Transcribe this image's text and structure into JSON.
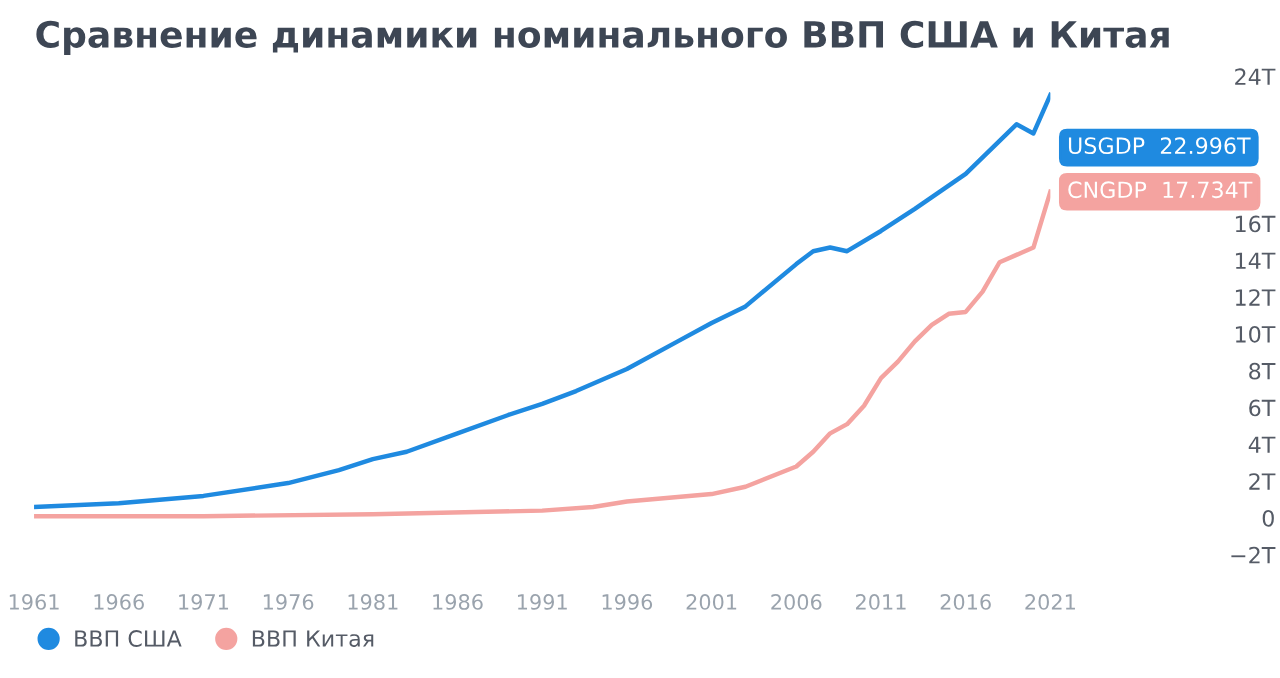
{
  "chart_data": {
    "type": "line",
    "title": "Сравнение динамики номинального ВВП США и Китая",
    "series": [
      {
        "name": "ВВП США",
        "color": "#1f8ae0",
        "x": [
          1961,
          1966,
          1971,
          1976,
          1979,
          1981,
          1983,
          1986,
          1989,
          1991,
          1993,
          1996,
          1999,
          2001,
          2003,
          2006,
          2007,
          2008,
          2009,
          2011,
          2013,
          2016,
          2018,
          2019,
          2020,
          2021
        ],
        "values": [
          0.6,
          0.8,
          1.2,
          1.9,
          2.6,
          3.2,
          3.6,
          4.6,
          5.6,
          6.2,
          6.9,
          8.1,
          9.6,
          10.6,
          11.5,
          13.8,
          14.5,
          14.7,
          14.5,
          15.6,
          16.8,
          18.7,
          20.5,
          21.4,
          20.9,
          22.996
        ]
      },
      {
        "name": "ВВП Китая",
        "color": "#f4a3a0",
        "x": [
          1961,
          1971,
          1981,
          1991,
          1994,
          1996,
          2001,
          2003,
          2006,
          2007,
          2008,
          2009,
          2010,
          2011,
          2012,
          2013,
          2014,
          2015,
          2016,
          2017,
          2018,
          2019,
          2020,
          2021
        ],
        "values": [
          0.1,
          0.1,
          0.2,
          0.4,
          0.6,
          0.9,
          1.3,
          1.7,
          2.8,
          3.6,
          4.6,
          5.1,
          6.1,
          7.6,
          8.5,
          9.6,
          10.5,
          11.1,
          11.2,
          12.3,
          13.9,
          14.3,
          14.7,
          17.734
        ]
      }
    ],
    "annotations": [
      {
        "text": "USGDP  22.996T",
        "x": 2021,
        "y": 22.996
      },
      {
        "text": "CNGDP  17.734T",
        "x": 2021,
        "y": 17.734
      }
    ],
    "xlim": [
      1961,
      2021
    ],
    "xticks": [
      1961,
      1966,
      1971,
      1976,
      1981,
      1986,
      1991,
      1996,
      2001,
      2006,
      2011,
      2016,
      2021
    ],
    "ylim": [
      -2,
      24
    ],
    "yticks": [
      {
        "value": 24,
        "label": "24T"
      },
      {
        "value": 16,
        "label": "16T"
      },
      {
        "value": 14,
        "label": "14T"
      },
      {
        "value": 12,
        "label": "12T"
      },
      {
        "value": 10,
        "label": "10T"
      },
      {
        "value": 8,
        "label": "8T"
      },
      {
        "value": 6,
        "label": "6T"
      },
      {
        "value": 4,
        "label": "4T"
      },
      {
        "value": 2,
        "label": "2T"
      },
      0,
      {
        "value": -2,
        "label": "−2T"
      }
    ],
    "grid": false,
    "legend": "bottom left",
    "marker": "none",
    "line_style": "solid"
  }
}
